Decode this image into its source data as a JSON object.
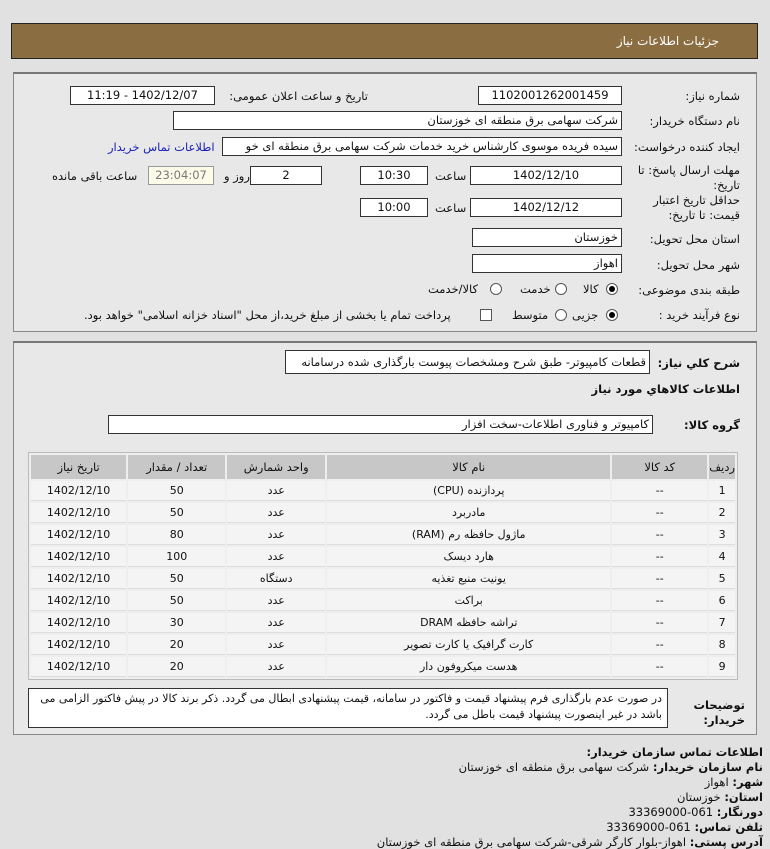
{
  "header": {
    "title": "جزئیات اطلاعات نیاز"
  },
  "form": {
    "need_number_label": "شماره نیاز:",
    "need_number": "1102001262001459",
    "announce_label": "تاریخ و ساعت اعلان عمومی:",
    "announce_value": "1402/12/07 - 11:19",
    "buyer_label": "نام دستگاه خریدار:",
    "buyer_value": "شرکت سهامی برق منطقه ای خوزستان",
    "creator_label": "ایجاد کننده درخواست:",
    "creator_value": "سیده فریده موسوی کارشناس خرید خدمات شرکت سهامی برق منطقه ای خو",
    "contact_link": "اطلاعات تماس خریدار",
    "deadline_label": "مهلت ارسال پاسخ: تا تاریخ:",
    "deadline_date": "1402/12/10",
    "time_label": "ساعت",
    "deadline_time": "10:30",
    "days": "2",
    "days_label": "روز و",
    "remaining": "23:04:07",
    "remaining_label": "ساعت باقی مانده",
    "validity_label": "حداقل تاریخ اعتبار قیمت: تا تاریخ:",
    "validity_date": "1402/12/12",
    "validity_time": "10:00",
    "province_label": "استان محل تحویل:",
    "province": "خوزستان",
    "city_label": "شهر محل تحویل:",
    "city": "اهواز",
    "category_label": "طبقه بندی موضوعی:",
    "category_options": [
      "کالا",
      "خدمت",
      "کالا/خدمت"
    ],
    "category_selected": "کالا",
    "process_label": "نوع فرآیند خرید :",
    "process_options": [
      "جزیی",
      "متوسط"
    ],
    "process_selected": "جزیی",
    "treasury_text": "پرداخت تمام یا بخشی از مبلغ خرید،از محل \"اسناد خزانه اسلامی\" خواهد بود.",
    "treasury_checked": false
  },
  "details": {
    "summary_label": "شرح کلي نیاز:",
    "summary": "قطعات کامپیوتر- طبق شرح ومشخصات پیوست بارگذاری شده درسامانه",
    "goods_heading": "اطلاعات کالاهاي مورد نیاز",
    "group_label": "گروه کالا:",
    "group": "کامپیوتر و فناوری اطلاعات-سخت افزار",
    "columns": [
      "ردیف",
      "کد کالا",
      "نام کالا",
      "واحد شمارش",
      "تعداد / مقدار",
      "تاریخ نیاز"
    ],
    "rows": [
      [
        "1",
        "--",
        "پردازنده (CPU)",
        "عدد",
        "50",
        "1402/12/10"
      ],
      [
        "2",
        "--",
        "مادربرد",
        "عدد",
        "50",
        "1402/12/10"
      ],
      [
        "3",
        "--",
        "ماژول حافظه رم (RAM)",
        "عدد",
        "80",
        "1402/12/10"
      ],
      [
        "4",
        "--",
        "هارد دیسک",
        "عدد",
        "100",
        "1402/12/10"
      ],
      [
        "5",
        "--",
        "یونیت منبع تغذیه",
        "دستگاه",
        "50",
        "1402/12/10"
      ],
      [
        "6",
        "--",
        "براکت",
        "عدد",
        "50",
        "1402/12/10"
      ],
      [
        "7",
        "--",
        "تراشه حافظه DRAM",
        "عدد",
        "30",
        "1402/12/10"
      ],
      [
        "8",
        "--",
        "کارت گرافیک یا کارت تصویر",
        "عدد",
        "20",
        "1402/12/10"
      ],
      [
        "9",
        "--",
        "هدست میکروفون دار",
        "عدد",
        "20",
        "1402/12/10"
      ]
    ],
    "notes_label": "توضیحات خریدار:",
    "notes": "در صورت عدم بارگذاری فرم پیشنهاد قیمت و فاکتور در سامانه، قیمت پیشنهادی ابطال می گردد. ذکر برند کالا در پیش فاکتور الزامی می باشد در غیر اینصورت پیشنهاد قیمت باطل می گردد."
  },
  "contact": {
    "heading": "اطلاعات تماس سازمان خریدار:",
    "org_label": "نام سازمان خریدار:",
    "org": "شرکت سهامی برق منطقه ای خوزستان",
    "city_label": "شهر:",
    "city": "اهواز",
    "province_label": "استان:",
    "province": "خوزستان",
    "fax_label": "دورنگار:",
    "fax": "061-33369000",
    "phone_label": "تلفن تماس:",
    "phone": "061-33369000",
    "address_label": "آدرس پستی:",
    "address": "اهواز-بلوار کارگر شرقی-شرکت سهامی برق منطقه ای خوزستان"
  },
  "colors": {
    "header_bg": "#8b6d42",
    "link": "#1a23b5"
  }
}
